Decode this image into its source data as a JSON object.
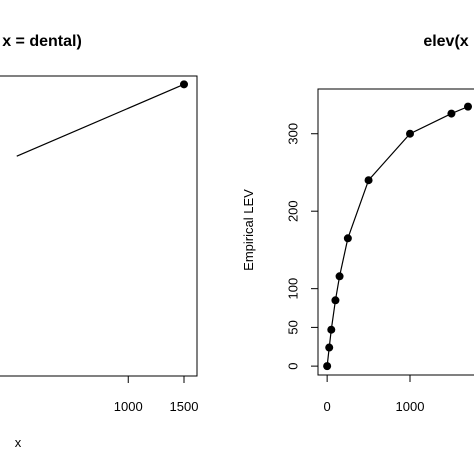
{
  "chart_data": [
    {
      "type": "line",
      "title": "x = dental)",
      "xlabel": "x",
      "ylabel": "",
      "xlim": [
        -500,
        1500
      ],
      "ylim": [
        0,
        350
      ],
      "x_ticks": [
        1000,
        1500
      ],
      "x_tick_labels": [
        "1000",
        "1500"
      ],
      "y_ticks": [],
      "grid": false,
      "series": [
        {
          "x": [
            0,
            1500
          ],
          "y": [
            265,
            352
          ],
          "markers": [
            false,
            true
          ]
        }
      ]
    },
    {
      "type": "line",
      "title": "elev(x",
      "xlabel": "",
      "ylabel": "Empirical LEV",
      "xlim": [
        -50,
        1700
      ],
      "ylim": [
        -5,
        350
      ],
      "x_ticks": [
        0,
        1000
      ],
      "x_tick_labels": [
        "0",
        "1000"
      ],
      "y_ticks": [
        0,
        50,
        100,
        200,
        300
      ],
      "y_tick_labels": [
        "0",
        "50",
        "100",
        "200",
        "300"
      ],
      "grid": false,
      "series": [
        {
          "x": [
            0,
            25,
            50,
            100,
            150,
            250,
            500,
            1000,
            1500,
            1700
          ],
          "y": [
            0,
            24,
            47,
            85,
            116,
            165,
            240,
            300,
            326,
            335
          ]
        }
      ]
    }
  ]
}
